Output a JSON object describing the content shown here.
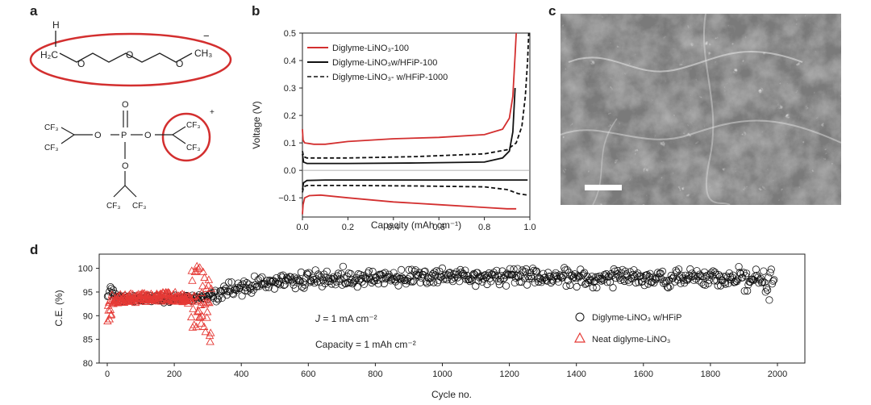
{
  "panel_labels": {
    "a": "a",
    "b": "b",
    "c": "c",
    "d": "d"
  },
  "panel_a": {
    "diglyme": {
      "h_top": "H",
      "h2c": "H₂C",
      "o": "O",
      "ch3": "CH₃",
      "charge": "−"
    },
    "phosphate": {
      "o_top": "O",
      "p": "P",
      "o": "O",
      "cf3": "CF₃",
      "charge": "+"
    },
    "highlight_color": "#d32f2f"
  },
  "chart_data": [
    {
      "id": "b",
      "type": "line",
      "xlabel": "Capacity (mAh cm⁻¹)",
      "ylabel": "Voltage (V)",
      "xlim": [
        0.0,
        1.0
      ],
      "ylim": [
        -0.17,
        0.5
      ],
      "xticks": [
        "0.0",
        "0.2",
        "0.4",
        "0.6",
        "0.8",
        "1.0"
      ],
      "yticks": [
        "−0.1",
        "0.0",
        "0.1",
        "0.2",
        "0.3",
        "0.4",
        "0.5"
      ],
      "legend_position": "top-left",
      "legend": [
        {
          "label": "Diglyme-LiNO₃-100",
          "color": "#d32f2f",
          "dash": "solid"
        },
        {
          "label": "Diglyme-LiNO₃w/HFiP-100",
          "color": "#111111",
          "dash": "solid"
        },
        {
          "label": "Diglyme-LiNO₃- w/HFiP-1000",
          "color": "#111111",
          "dash": "dashed"
        }
      ],
      "series": [
        {
          "name": "Diglyme-LiNO₃-100",
          "color": "#d32f2f",
          "dash": "solid",
          "branch": "charge",
          "x": [
            0.0,
            0.003,
            0.01,
            0.05,
            0.1,
            0.2,
            0.4,
            0.6,
            0.8,
            0.88,
            0.91,
            0.925,
            0.935,
            0.94
          ],
          "y": [
            0.15,
            0.11,
            0.1,
            0.095,
            0.095,
            0.105,
            0.115,
            0.12,
            0.13,
            0.15,
            0.19,
            0.27,
            0.42,
            0.5
          ]
        },
        {
          "name": "Diglyme-LiNO₃-100",
          "color": "#d32f2f",
          "dash": "solid",
          "branch": "discharge",
          "x": [
            0.0,
            0.003,
            0.01,
            0.03,
            0.08,
            0.2,
            0.4,
            0.6,
            0.8,
            0.9,
            0.94
          ],
          "y": [
            -0.16,
            -0.125,
            -0.1,
            -0.092,
            -0.09,
            -0.1,
            -0.115,
            -0.125,
            -0.135,
            -0.14,
            -0.14
          ]
        },
        {
          "name": "Diglyme-LiNO₃w/HFiP-100",
          "color": "#111111",
          "dash": "solid",
          "branch": "charge",
          "x": [
            0.0,
            0.005,
            0.02,
            0.2,
            0.5,
            0.8,
            0.88,
            0.91,
            0.925,
            0.935
          ],
          "y": [
            0.06,
            0.03,
            0.025,
            0.025,
            0.027,
            0.03,
            0.045,
            0.07,
            0.14,
            0.3
          ]
        },
        {
          "name": "Diglyme-LiNO₃w/HFiP-100",
          "color": "#111111",
          "dash": "solid",
          "branch": "discharge",
          "x": [
            0.0,
            0.005,
            0.02,
            0.1,
            0.5,
            0.8,
            0.99
          ],
          "y": [
            -0.07,
            -0.045,
            -0.037,
            -0.035,
            -0.035,
            -0.035,
            -0.035
          ]
        },
        {
          "name": "Diglyme-LiNO₃- w/HFiP-1000",
          "color": "#111111",
          "dash": "dashed",
          "branch": "charge",
          "x": [
            0.0,
            0.005,
            0.02,
            0.2,
            0.5,
            0.8,
            0.9,
            0.94,
            0.965,
            0.98,
            0.99,
            0.995
          ],
          "y": [
            0.07,
            0.05,
            0.045,
            0.045,
            0.05,
            0.06,
            0.075,
            0.1,
            0.16,
            0.27,
            0.4,
            0.5
          ]
        },
        {
          "name": "Diglyme-LiNO₃- w/HFiP-1000",
          "color": "#111111",
          "dash": "dashed",
          "branch": "discharge",
          "x": [
            0.0,
            0.005,
            0.02,
            0.2,
            0.5,
            0.8,
            0.9,
            0.95,
            0.99
          ],
          "y": [
            -0.08,
            -0.06,
            -0.055,
            -0.055,
            -0.057,
            -0.06,
            -0.07,
            -0.085,
            -0.09
          ]
        }
      ]
    },
    {
      "id": "d",
      "type": "scatter",
      "xlabel": "Cycle no.",
      "ylabel": "C.E. (%)",
      "xlim": [
        0,
        2000
      ],
      "ylim": [
        80,
        103
      ],
      "xticks": [
        "0",
        "200",
        "400",
        "600",
        "800",
        "1000",
        "1200",
        "1400",
        "1600",
        "1800",
        "2000"
      ],
      "yticks": [
        "80",
        "85",
        "90",
        "95",
        "100"
      ],
      "legend_position": "right",
      "legend": [
        {
          "label": "Diglyme-LiNO₃ w/HFiP",
          "marker": "circle",
          "color": "#111111"
        },
        {
          "label": "Neat diglyme-LiNO₃",
          "marker": "triangle",
          "color": "#e53935"
        }
      ],
      "annotations": {
        "current_prefix": "J",
        "current_rest": " = 1 mA cm⁻²",
        "capacity": "Capacity = 1 mAh cm⁻²"
      },
      "series": [
        {
          "name": "Diglyme-LiNO₃ w/HFiP",
          "marker": "circle",
          "color": "#111111",
          "cycles": [
            1,
            1990
          ],
          "trend_x": [
            1,
            10,
            30,
            100,
            200,
            300,
            400,
            500,
            600,
            800,
            1000,
            1200,
            1400,
            1600,
            1800,
            1900,
            1990
          ],
          "trend_y": [
            94.5,
            95.5,
            93.8,
            93.5,
            93.5,
            94.0,
            96.0,
            97.0,
            97.6,
            98.0,
            98.2,
            98.3,
            98.0,
            98.0,
            98.0,
            97.5,
            96.8
          ]
        },
        {
          "name": "Neat diglyme-LiNO₃",
          "marker": "triangle",
          "color": "#e53935",
          "cycles": [
            1,
            310
          ],
          "trend_x": [
            1,
            10,
            30,
            100,
            200,
            250,
            280,
            300,
            310
          ],
          "trend_y": [
            90.0,
            92.0,
            93.5,
            93.8,
            94.0,
            93.5,
            94.5,
            92.0,
            90.0
          ]
        }
      ]
    }
  ]
}
